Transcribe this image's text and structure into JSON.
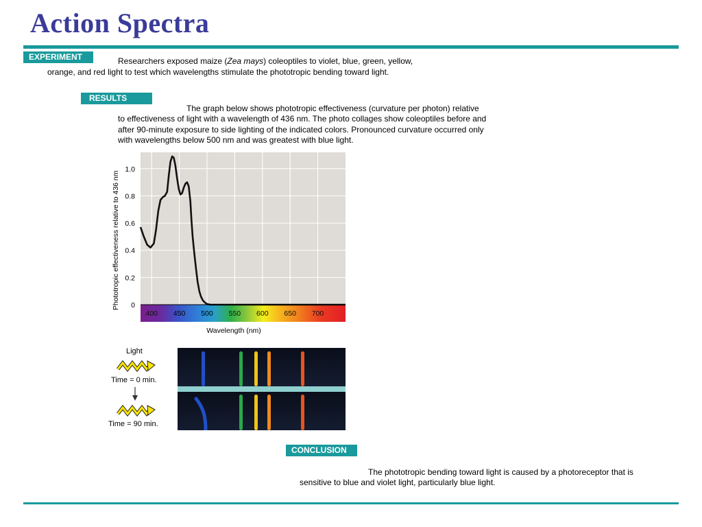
{
  "title": "Action Spectra",
  "experiment": {
    "label": "EXPERIMENT",
    "line1_pre": "Researchers exposed maize (",
    "line1_italic": "Zea mays",
    "line1_post": ") coleoptiles to violet, blue, green, yellow,",
    "line2": "orange, and red light to test which wavelengths stimulate the phototropic bending toward light."
  },
  "results": {
    "label": "RESULTS",
    "line1": "The graph below shows phototropic effectiveness (curvature per photon) relative",
    "line2": "to effectiveness of light with a wavelength of 436 nm. The photo collages show coleoptiles before and",
    "line3": "after 90-minute exposure to side lighting of the indicated colors. Pronounced curvature occurred only",
    "line4": "with wavelengths below 500 nm and was greatest with blue light."
  },
  "chart_data": {
    "type": "line",
    "xlabel": "Wavelength (nm)",
    "ylabel": "Phototropic effectiveness relative to 436 nm",
    "xlim": [
      380,
      750
    ],
    "ylim": [
      0,
      1.12
    ],
    "x_ticks": [
      "400",
      "450",
      "500",
      "550",
      "600",
      "650",
      "700"
    ],
    "y_ticks": [
      "0",
      "0.2",
      "0.4",
      "0.6",
      "0.8",
      "1.0"
    ],
    "grid": true,
    "series": [
      {
        "x": [
          380,
          386,
          392,
          398,
          404,
          408,
          412,
          416,
          420,
          424,
          428,
          431,
          434,
          437,
          440,
          443,
          446,
          449,
          452,
          455,
          458,
          461,
          464,
          467,
          470,
          472,
          474,
          477,
          480,
          483,
          486,
          489,
          492,
          495,
          498,
          500,
          503,
          507,
          512,
          520,
          530,
          560,
          600,
          650,
          700,
          750
        ],
        "y": [
          0.57,
          0.5,
          0.44,
          0.42,
          0.45,
          0.55,
          0.69,
          0.77,
          0.79,
          0.8,
          0.83,
          0.95,
          1.05,
          1.09,
          1.08,
          1.02,
          0.93,
          0.85,
          0.81,
          0.82,
          0.86,
          0.89,
          0.9,
          0.87,
          0.76,
          0.62,
          0.5,
          0.38,
          0.27,
          0.17,
          0.1,
          0.06,
          0.035,
          0.02,
          0.01,
          0.005,
          0.002,
          0.0,
          0.0,
          0.0,
          0.0,
          0.0,
          0.0,
          0.0,
          0.0,
          0.0
        ]
      }
    ]
  },
  "colors": {
    "title": "#3b3b9a",
    "accent_teal": "#1a9a9c",
    "plot_background": "#dfdbd6",
    "light_arrow": "#ffe600"
  },
  "photo_panel": {
    "light_label": "Light",
    "time0_label": "Time = 0 min.",
    "time90_label": "Time = 90 min.",
    "coleoptile_colors": [
      "#2050c8",
      "#2aa84a",
      "#f2c21a",
      "#f08a1e",
      "#e8541e"
    ]
  },
  "conclusion": {
    "label": "CONCLUSION",
    "line1": "The phototropic bending toward light is caused by a photoreceptor that is",
    "line2": "sensitive to blue and violet light, particularly blue light."
  }
}
